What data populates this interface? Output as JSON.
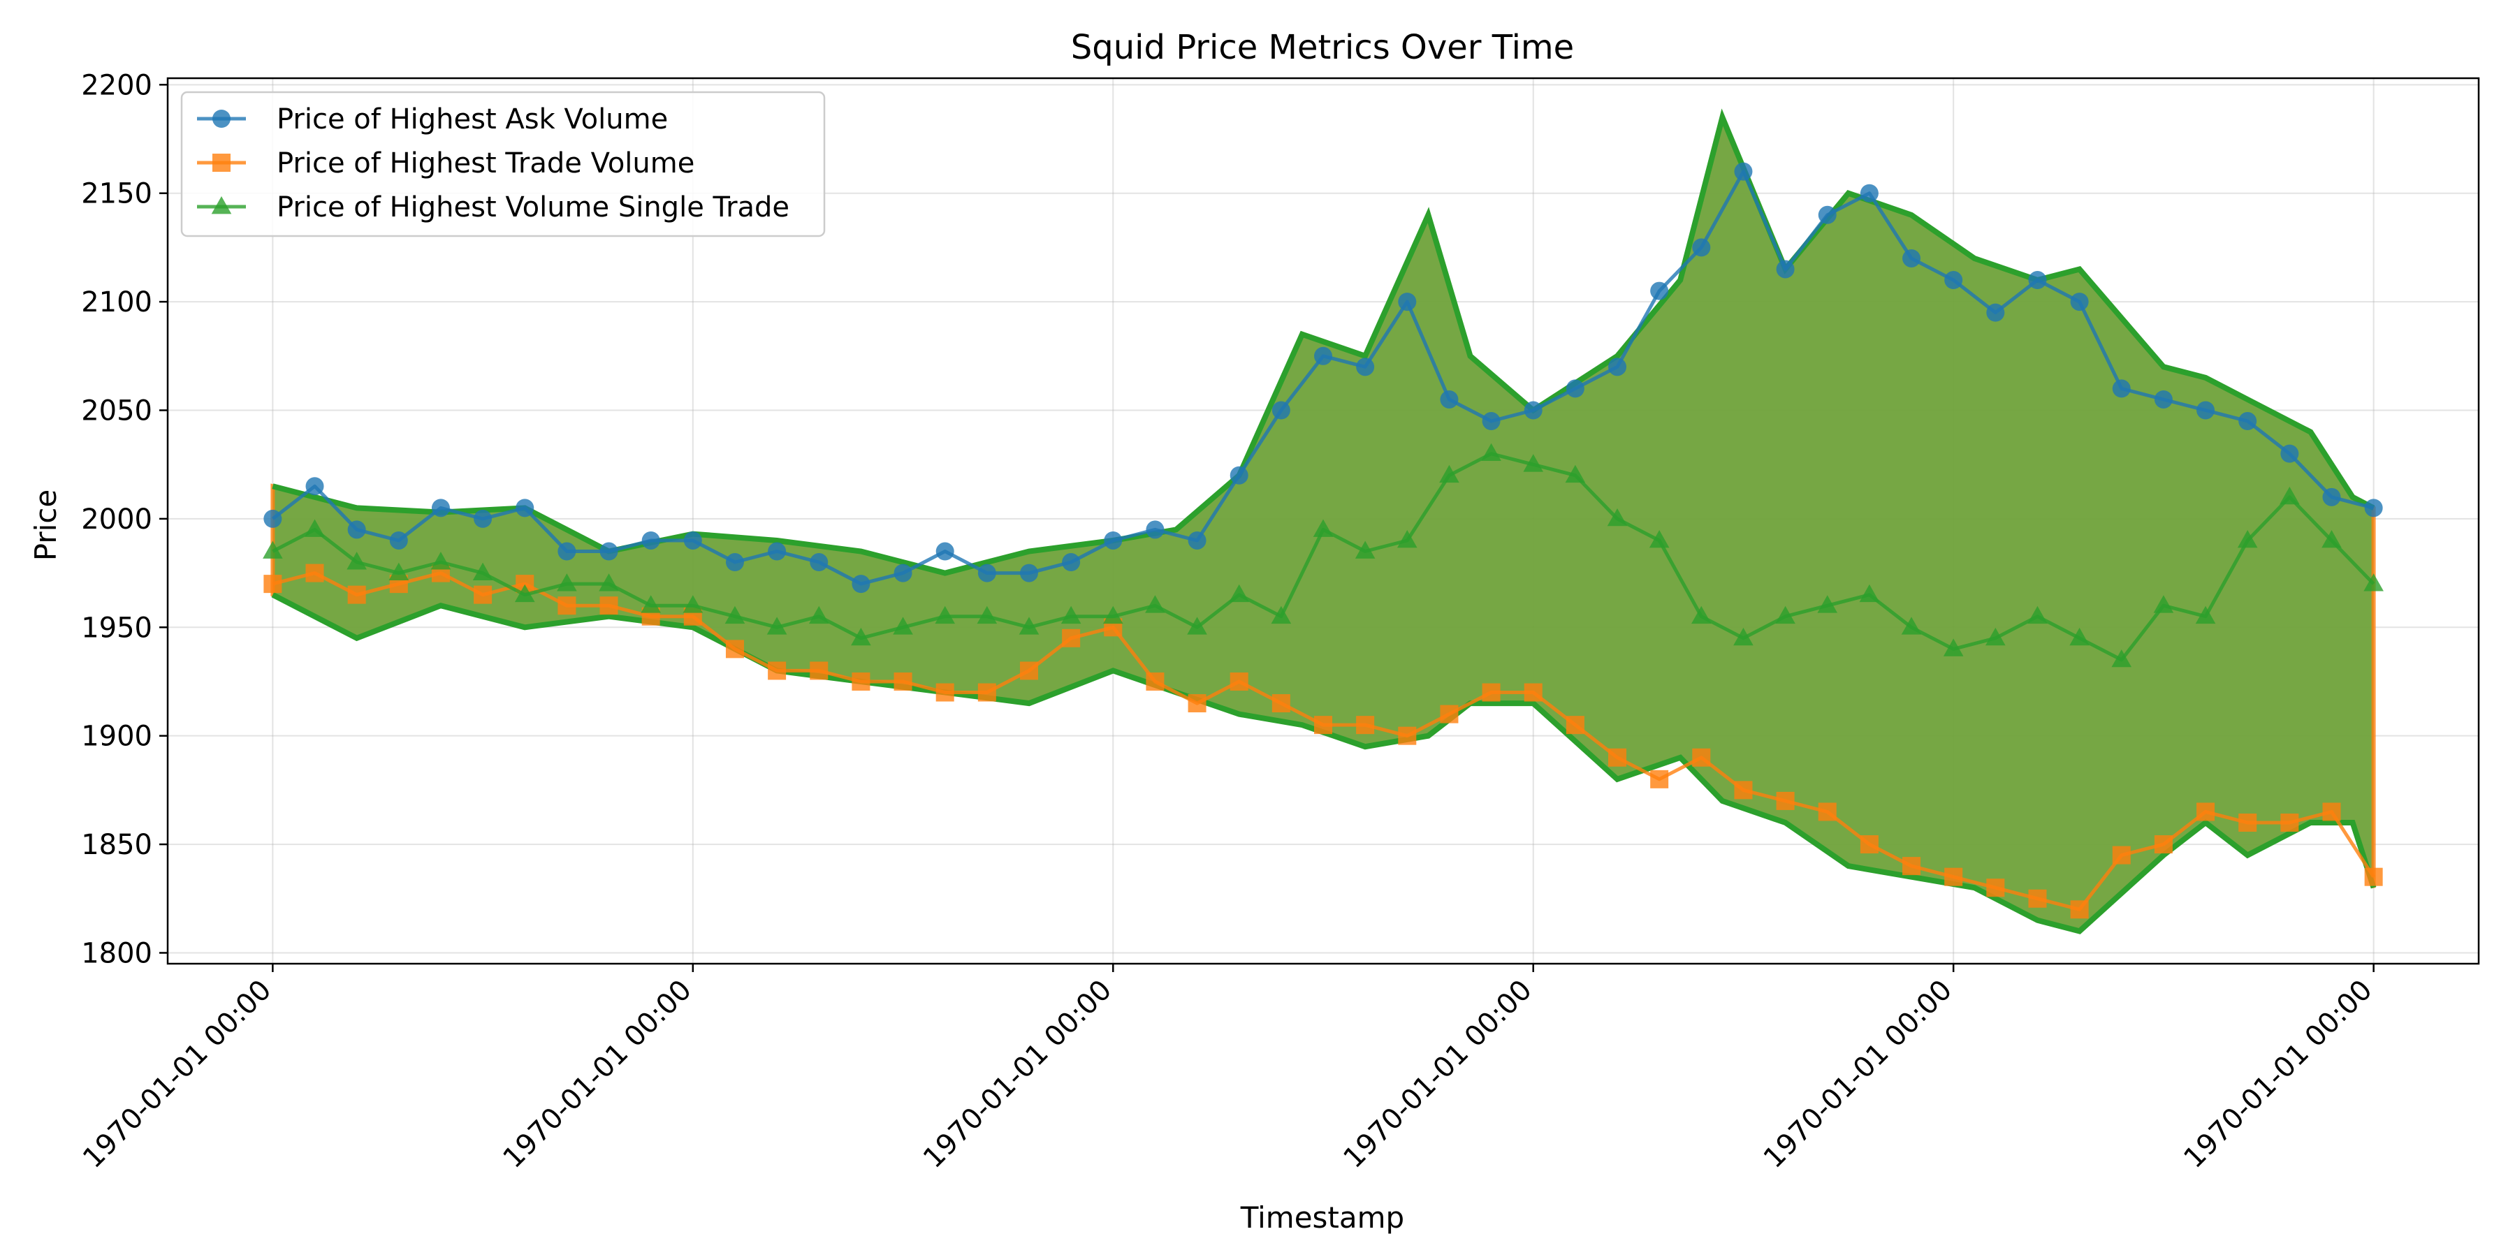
{
  "chart_data": {
    "type": "line",
    "title": "Squid Price Metrics Over Time",
    "xlabel": "Timestamp",
    "ylabel": "Price",
    "ylim": [
      1795,
      2203
    ],
    "xlim": [
      -0.25,
      5.25
    ],
    "yticks": [
      1800,
      1850,
      1900,
      1950,
      2000,
      2050,
      2100,
      2150,
      2200
    ],
    "xticks": [
      {
        "x": 0,
        "label": "1970-01-01 00:00"
      },
      {
        "x": 1,
        "label": "1970-01-01 00:00"
      },
      {
        "x": 2,
        "label": "1970-01-01 00:00"
      },
      {
        "x": 3,
        "label": "1970-01-01 00:00"
      },
      {
        "x": 4,
        "label": "1970-01-01 00:00"
      },
      {
        "x": 5,
        "label": "1970-01-01 00:00"
      }
    ],
    "grid": true,
    "legend_position": "top-left",
    "band": {
      "name": "band",
      "x": [
        0,
        0.2,
        0.4,
        0.6,
        0.8,
        1.0,
        1.2,
        1.4,
        1.6,
        1.8,
        2.0,
        2.15,
        2.3,
        2.45,
        2.6,
        2.75,
        2.85,
        3.0,
        3.2,
        3.35,
        3.45,
        3.6,
        3.75,
        3.9,
        4.05,
        4.2,
        4.3,
        4.5,
        4.6,
        4.7,
        4.85,
        4.95,
        5.0
      ],
      "high": [
        2015,
        2005,
        2003,
        2005,
        1985,
        1993,
        1990,
        1985,
        1975,
        1985,
        1990,
        1995,
        2020,
        2085,
        2075,
        2140,
        2075,
        2050,
        2075,
        2110,
        2185,
        2115,
        2150,
        2140,
        2120,
        2110,
        2115,
        2070,
        2065,
        2055,
        2040,
        2010,
        2005
      ],
      "low": [
        1965,
        1945,
        1960,
        1950,
        1955,
        1950,
        1930,
        1925,
        1920,
        1915,
        1930,
        1920,
        1910,
        1905,
        1895,
        1900,
        1915,
        1915,
        1880,
        1890,
        1870,
        1860,
        1840,
        1835,
        1830,
        1815,
        1810,
        1845,
        1860,
        1845,
        1860,
        1860,
        1830
      ]
    },
    "series": [
      {
        "name": "Price of Highest Ask Volume",
        "color": "#1f77b4",
        "marker": "circle",
        "x": [
          0,
          0.1,
          0.2,
          0.3,
          0.4,
          0.5,
          0.6,
          0.7,
          0.8,
          0.9,
          1.0,
          1.1,
          1.2,
          1.3,
          1.4,
          1.5,
          1.6,
          1.7,
          1.8,
          1.9,
          2.0,
          2.1,
          2.2,
          2.3,
          2.4,
          2.5,
          2.6,
          2.7,
          2.8,
          2.9,
          3.0,
          3.1,
          3.2,
          3.3,
          3.4,
          3.5,
          3.6,
          3.7,
          3.8,
          3.9,
          4.0,
          4.1,
          4.2,
          4.3,
          4.4,
          4.5,
          4.6,
          4.7,
          4.8,
          4.9,
          5.0
        ],
        "values": [
          2000,
          2015,
          1995,
          1990,
          2005,
          2000,
          2005,
          1985,
          1985,
          1990,
          1990,
          1980,
          1985,
          1980,
          1970,
          1975,
          1985,
          1975,
          1975,
          1980,
          1990,
          1995,
          1990,
          2020,
          2050,
          2075,
          2070,
          2100,
          2055,
          2045,
          2050,
          2060,
          2070,
          2105,
          2125,
          2160,
          2115,
          2140,
          2150,
          2120,
          2110,
          2095,
          2110,
          2100,
          2060,
          2055,
          2050,
          2045,
          2030,
          2010,
          2005
        ]
      },
      {
        "name": "Price of Highest Trade Volume",
        "color": "#ff7f0e",
        "marker": "square",
        "x": [
          0,
          0.1,
          0.2,
          0.3,
          0.4,
          0.5,
          0.6,
          0.7,
          0.8,
          0.9,
          1.0,
          1.1,
          1.2,
          1.3,
          1.4,
          1.5,
          1.6,
          1.7,
          1.8,
          1.9,
          2.0,
          2.1,
          2.2,
          2.3,
          2.4,
          2.5,
          2.6,
          2.7,
          2.8,
          2.9,
          3.0,
          3.1,
          3.2,
          3.3,
          3.4,
          3.5,
          3.6,
          3.7,
          3.8,
          3.9,
          4.0,
          4.1,
          4.2,
          4.3,
          4.4,
          4.5,
          4.6,
          4.7,
          4.8,
          4.9,
          5.0
        ],
        "values": [
          1970,
          1975,
          1965,
          1970,
          1975,
          1965,
          1970,
          1960,
          1960,
          1955,
          1955,
          1940,
          1930,
          1930,
          1925,
          1925,
          1920,
          1920,
          1930,
          1945,
          1950,
          1925,
          1915,
          1925,
          1915,
          1905,
          1905,
          1900,
          1910,
          1920,
          1920,
          1905,
          1890,
          1880,
          1890,
          1875,
          1870,
          1865,
          1850,
          1840,
          1835,
          1830,
          1825,
          1820,
          1845,
          1850,
          1865,
          1860,
          1860,
          1865,
          1835
        ]
      },
      {
        "name": "Price of Highest Volume Single Trade",
        "color": "#2ca02c",
        "marker": "triangle",
        "x": [
          0,
          0.1,
          0.2,
          0.3,
          0.4,
          0.5,
          0.6,
          0.7,
          0.8,
          0.9,
          1.0,
          1.1,
          1.2,
          1.3,
          1.4,
          1.5,
          1.6,
          1.7,
          1.8,
          1.9,
          2.0,
          2.1,
          2.2,
          2.3,
          2.4,
          2.5,
          2.6,
          2.7,
          2.8,
          2.9,
          3.0,
          3.1,
          3.2,
          3.3,
          3.4,
          3.5,
          3.6,
          3.7,
          3.8,
          3.9,
          4.0,
          4.1,
          4.2,
          4.3,
          4.4,
          4.5,
          4.6,
          4.7,
          4.8,
          4.9,
          5.0
        ],
        "values": [
          1985,
          1995,
          1980,
          1975,
          1980,
          1975,
          1965,
          1970,
          1970,
          1960,
          1960,
          1955,
          1950,
          1955,
          1945,
          1950,
          1955,
          1955,
          1950,
          1955,
          1955,
          1960,
          1950,
          1965,
          1955,
          1995,
          1985,
          1990,
          2020,
          2030,
          2025,
          2020,
          2000,
          1990,
          1955,
          1945,
          1955,
          1960,
          1965,
          1950,
          1940,
          1945,
          1955,
          1945,
          1935,
          1960,
          1955,
          1990,
          2010,
          1990,
          1970
        ]
      }
    ]
  }
}
